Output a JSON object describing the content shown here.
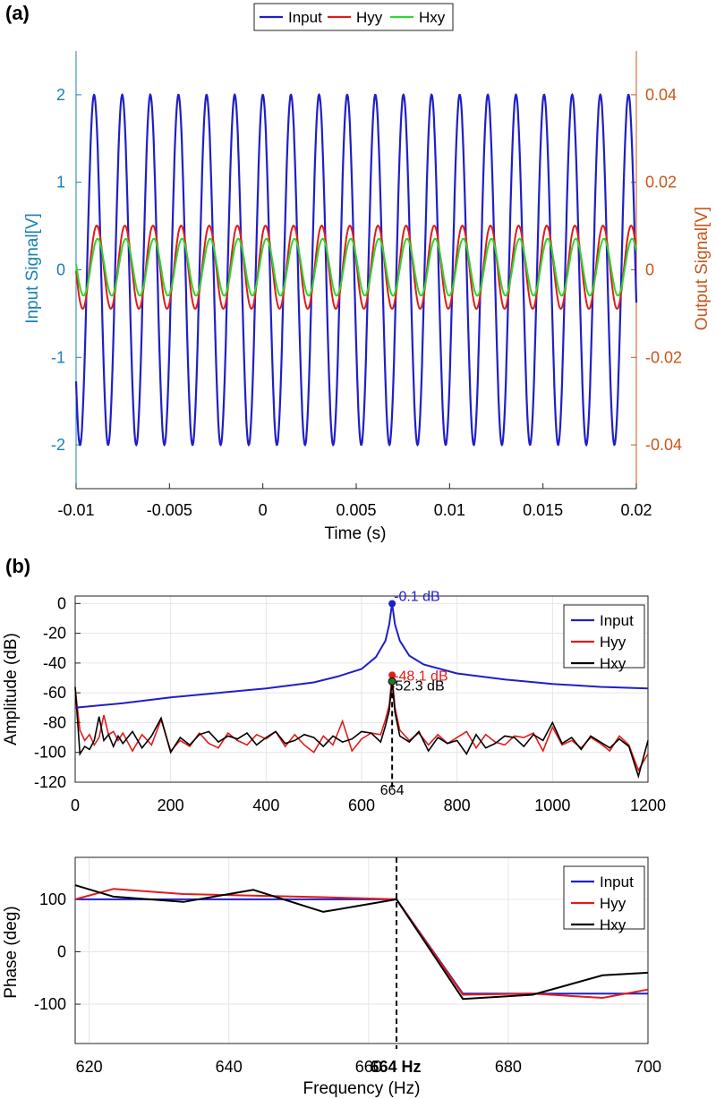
{
  "colors": {
    "input": "#1f1fc8",
    "hyy": "#e21b1b",
    "hxy": "#2fd62f",
    "hxy_spectrum": "#000000",
    "left_axis": "#1a7fb5",
    "right_axis": "#c8561a",
    "grid": "#e6e6e6"
  },
  "chart_data": [
    {
      "panel": "(a)",
      "type": "line",
      "xlabel": "Time (s)",
      "ylabel_left": "Input Signal[V]",
      "ylabel_right": "Output Signal[V]",
      "xlim": [
        -0.01,
        0.02
      ],
      "ylim_left": [
        -2.5,
        2.5
      ],
      "ylim_right": [
        -0.05,
        0.05
      ],
      "x_ticks": [
        "-0.01",
        "-0.005",
        "0",
        "0.005",
        "0.01",
        "0.015",
        "0.02"
      ],
      "y_left_ticks": [
        "2",
        "1",
        "0",
        "-1",
        "-2"
      ],
      "y_right_ticks": [
        "0.04",
        "0.02",
        "0",
        "-0.02",
        "-0.04"
      ],
      "legend": [
        "Input",
        "Hyy",
        "Hxy"
      ],
      "legend_position": "top-center",
      "grid": false,
      "frequency_hz": 664,
      "series": [
        {
          "name": "Input",
          "axis": "left",
          "amplitude": 2.0,
          "offset": 0.0
        },
        {
          "name": "Hyy",
          "axis": "right",
          "amplitude": 0.0095,
          "offset": 0.0006
        },
        {
          "name": "Hxy",
          "axis": "right",
          "amplitude": 0.0065,
          "offset": 0.0006
        }
      ]
    },
    {
      "panel": "(b)",
      "type": "line",
      "xlabel": "",
      "ylabel": "Amplitude (dB)",
      "xlim": [
        0,
        1200
      ],
      "ylim": [
        -120,
        5
      ],
      "x_ticks": [
        "0",
        "200",
        "400",
        "600",
        "800",
        "1000",
        "1200"
      ],
      "y_ticks": [
        "0",
        "-20",
        "-40",
        "-60",
        "-80",
        "-100",
        "-120"
      ],
      "legend": [
        "Input",
        "Hyy",
        "Hxy"
      ],
      "legend_position": "top-right",
      "grid": true,
      "marker_line_x": 664,
      "marker_label": "664",
      "annotations": [
        {
          "text": "-0.1 dB",
          "x": 664,
          "y": -0.1,
          "series": "Input"
        },
        {
          "text": "-48.1 dB",
          "x": 664,
          "y": -48.1,
          "series": "Hyy"
        },
        {
          "text": "-52.3 dB",
          "x": 664,
          "y": -52.3,
          "series": "Hxy"
        }
      ],
      "input_spectrum": {
        "x": [
          0,
          100,
          200,
          300,
          400,
          500,
          550,
          600,
          630,
          650,
          658,
          664,
          670,
          680,
          700,
          730,
          800,
          900,
          1000,
          1100,
          1200
        ],
        "y": [
          -70,
          -67,
          -63,
          -60,
          -57,
          -53,
          -49,
          -44,
          -36,
          -25,
          -14,
          -0.1,
          -14,
          -25,
          -35,
          -41,
          -47,
          -51,
          -54,
          -56,
          -57
        ]
      },
      "hyy_spectrum": {
        "x": [
          0,
          10,
          20,
          30,
          40,
          50,
          60,
          70,
          80,
          90,
          100,
          120,
          140,
          160,
          180,
          200,
          220,
          240,
          260,
          280,
          300,
          320,
          340,
          360,
          380,
          400,
          420,
          440,
          460,
          480,
          500,
          520,
          540,
          560,
          580,
          600,
          620,
          640,
          650,
          658,
          664,
          670,
          680,
          700,
          720,
          740,
          760,
          780,
          800,
          820,
          840,
          860,
          880,
          900,
          920,
          940,
          960,
          980,
          1000,
          1020,
          1040,
          1060,
          1080,
          1100,
          1120,
          1140,
          1160,
          1180,
          1200
        ],
        "y": [
          -57,
          -85,
          -92,
          -88,
          -95,
          -90,
          -75,
          -88,
          -86,
          -92,
          -87,
          -99,
          -88,
          -95,
          -78,
          -99,
          -92,
          -96,
          -87,
          -94,
          -97,
          -87,
          -92,
          -95,
          -88,
          -91,
          -86,
          -96,
          -88,
          -95,
          -100,
          -89,
          -95,
          -79,
          -99,
          -91,
          -87,
          -88,
          -78,
          -68,
          -48.1,
          -70,
          -85,
          -92,
          -87,
          -95,
          -88,
          -94,
          -90,
          -86,
          -97,
          -88,
          -93,
          -95,
          -89,
          -90,
          -87,
          -99,
          -83,
          -95,
          -92,
          -97,
          -90,
          -94,
          -99,
          -89,
          -95,
          -112,
          -101
        ]
      },
      "hxy_spectrum": {
        "x": [
          0,
          10,
          20,
          30,
          40,
          50,
          60,
          70,
          80,
          90,
          100,
          120,
          140,
          160,
          180,
          200,
          220,
          240,
          260,
          280,
          300,
          320,
          340,
          360,
          380,
          400,
          420,
          440,
          460,
          480,
          500,
          520,
          540,
          560,
          580,
          600,
          620,
          640,
          650,
          658,
          664,
          670,
          680,
          700,
          720,
          740,
          760,
          780,
          800,
          820,
          840,
          860,
          880,
          900,
          920,
          940,
          960,
          980,
          1000,
          1020,
          1040,
          1060,
          1080,
          1100,
          1120,
          1140,
          1160,
          1180,
          1200
        ],
        "y": [
          -56,
          -101,
          -96,
          -98,
          -92,
          -76,
          -92,
          -88,
          -96,
          -89,
          -94,
          -86,
          -97,
          -89,
          -77,
          -100,
          -90,
          -95,
          -88,
          -86,
          -93,
          -89,
          -91,
          -87,
          -95,
          -90,
          -86,
          -94,
          -92,
          -88,
          -90,
          -96,
          -89,
          -93,
          -91,
          -86,
          -87,
          -93,
          -82,
          -72,
          -52.3,
          -73,
          -89,
          -93,
          -86,
          -99,
          -90,
          -94,
          -92,
          -101,
          -88,
          -97,
          -94,
          -89,
          -90,
          -96,
          -88,
          -92,
          -80,
          -94,
          -90,
          -98,
          -89,
          -93,
          -97,
          -91,
          -96,
          -116,
          -92
        ]
      }
    },
    {
      "panel": "(b) phase",
      "type": "line",
      "xlabel": "Frequency (Hz)",
      "ylabel": "Phase (deg)",
      "xlim": [
        618,
        700
      ],
      "ylim": [
        -175,
        180
      ],
      "x_ticks": [
        "620",
        "640",
        "660",
        "680",
        "700"
      ],
      "y_ticks": [
        "100",
        "0",
        "-100"
      ],
      "legend": [
        "Input",
        "Hyy",
        "Hxy"
      ],
      "legend_position": "top-right",
      "grid": true,
      "marker_line_x": 664,
      "marker_label": "664 Hz",
      "series": [
        {
          "name": "Input",
          "x": [
            618,
            664,
            673.5,
            700
          ],
          "y": [
            100,
            100,
            -80,
            -80
          ]
        },
        {
          "name": "Hyy",
          "x": [
            618,
            623.5,
            633.5,
            653.5,
            664,
            673.5,
            683.5,
            693.5,
            700
          ],
          "y": [
            100,
            120,
            110,
            104,
            100,
            -82,
            -80,
            -88,
            -72
          ]
        },
        {
          "name": "Hxy",
          "x": [
            618,
            623.5,
            633.5,
            643.5,
            653.5,
            664,
            673.5,
            683.5,
            693.5,
            700
          ],
          "y": [
            127,
            105,
            95,
            118,
            76,
            100,
            -90,
            -82,
            -45,
            -40
          ]
        }
      ]
    }
  ]
}
